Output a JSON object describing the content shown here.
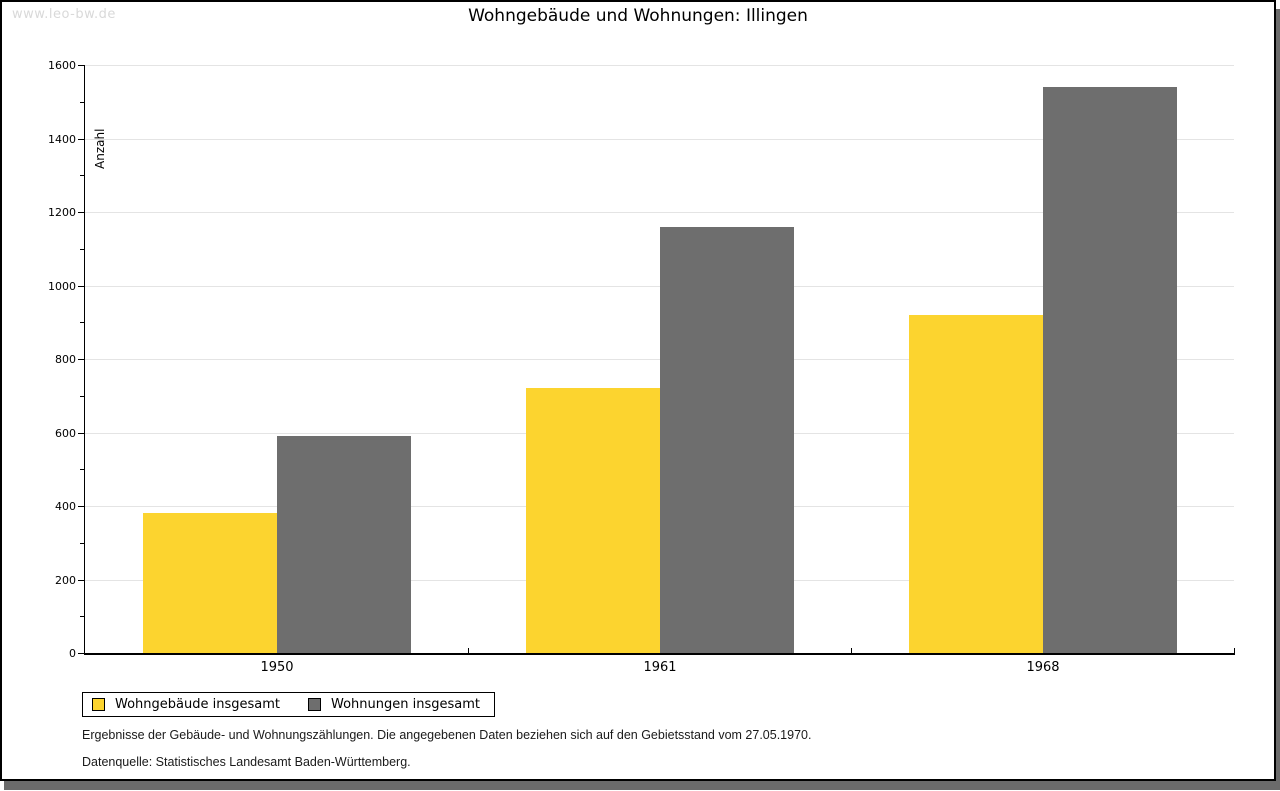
{
  "page": {
    "watermark": "www.leo-bw.de",
    "title": "Wohngebäude und Wohnungen: Illingen"
  },
  "chart_data": {
    "type": "bar",
    "title": "Wohngebäude und Wohnungen: Illingen",
    "xlabel": "",
    "ylabel": "Anzahl",
    "categories": [
      "1950",
      "1961",
      "1968"
    ],
    "series": [
      {
        "name": "Wohngebäude insgesamt",
        "color": "#fcd42f",
        "values": [
          380,
          720,
          920
        ]
      },
      {
        "name": "Wohnungen insgesamt",
        "color": "#6e6e6e",
        "values": [
          590,
          1160,
          1540
        ]
      }
    ],
    "ylim": [
      0,
      1600
    ],
    "ytick_major_step": 200,
    "ytick_minor_step": 100,
    "grid": "horizontal gridlines at major ticks",
    "legend_position": "bottom-left"
  },
  "footnotes": {
    "line1": "Ergebnisse der Gebäude- und Wohnungszählungen. Die angegebenen Daten beziehen sich auf den Gebietsstand vom 27.05.1970.",
    "line2": "Datenquelle: Statistisches Landesamt Baden-Württemberg."
  },
  "colors": {
    "series1": "#fcd42f",
    "series2": "#6e6e6e",
    "grid": "#e4e4e4",
    "axis": "#000000",
    "watermark": "#d9d9d9",
    "shadow": "#6b6b6b"
  }
}
